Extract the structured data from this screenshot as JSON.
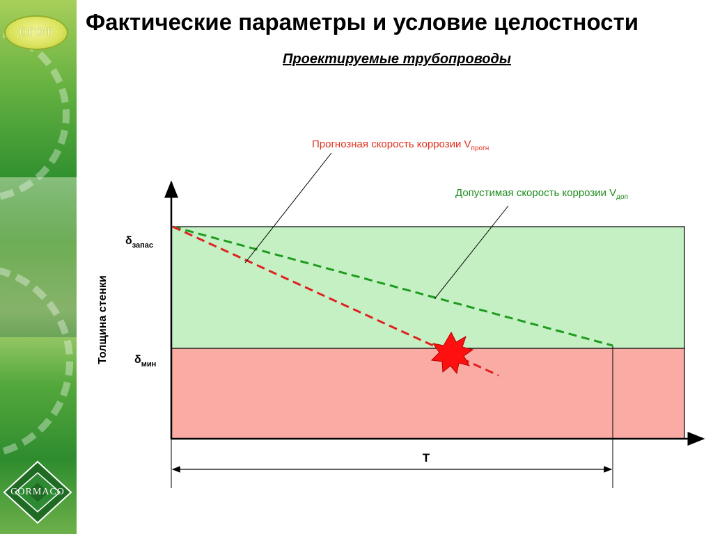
{
  "title": "Фактические параметры и условие целостности",
  "subtitle": "Проектируемые трубопроводы",
  "branding": {
    "top_logo_text": "СГОТ",
    "bottom_logo_text": "CORMACO"
  },
  "diagram": {
    "label_forecast": {
      "text": "Прогнозная скорость коррозии V",
      "sub": "прогн"
    },
    "label_allowed": {
      "text": "Допустимая скорость коррозии V",
      "sub": "доп"
    },
    "delta_reserve": {
      "text": "δ",
      "sub": "запас"
    },
    "delta_min": {
      "text": "δ",
      "sub": "мин"
    },
    "y_axis_label": "Толщина стенки",
    "t_label": "T",
    "colors": {
      "safe_zone": "#c4f0c4",
      "danger_zone": "#f9aba4",
      "forecast_line": "#e02020",
      "allowed_line": "#1e9b1e",
      "forecast_label": "#e0301e",
      "allowed_label": "#1e8c1e",
      "burst": "#ff1010"
    }
  }
}
